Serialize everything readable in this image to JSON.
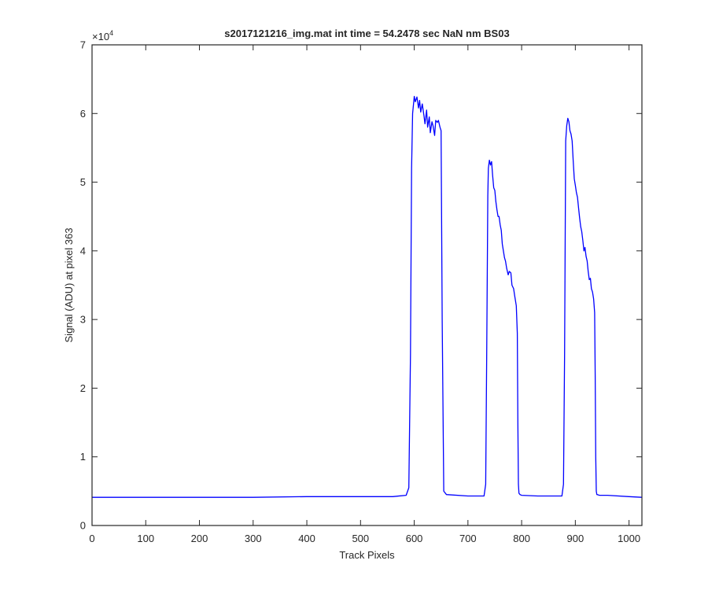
{
  "chart_data": {
    "type": "line",
    "title": "s2017121216_img.mat int time = 54.2478 sec  NaN nm BS03",
    "xlabel": "Track Pixels",
    "ylabel": "Signal (ADU) at pixel 363",
    "y_exponent_base": "×10",
    "y_exponent_power": "4",
    "xlim": [
      0,
      1024
    ],
    "ylim": [
      0,
      7
    ],
    "y_scale_factor": 10000,
    "x_ticks": [
      0,
      100,
      200,
      300,
      400,
      500,
      600,
      700,
      800,
      900,
      1000
    ],
    "y_ticks": [
      0,
      1,
      2,
      3,
      4,
      5,
      6,
      7
    ],
    "grid": false,
    "box": true,
    "series": [
      {
        "color": "#0000ff",
        "x": [
          0,
          100,
          200,
          300,
          400,
          500,
          560,
          585,
          590,
          593,
          595,
          597,
          600,
          602,
          605,
          608,
          610,
          612,
          615,
          618,
          620,
          623,
          625,
          628,
          630,
          633,
          635,
          638,
          640,
          643,
          645,
          648,
          650,
          652,
          655,
          660,
          700,
          730,
          733,
          735,
          737,
          738,
          740,
          742,
          744,
          746,
          748,
          750,
          752,
          754,
          756,
          758,
          760,
          762,
          764,
          766,
          768,
          770,
          772,
          775,
          777,
          780,
          782,
          785,
          787,
          790,
          792,
          793,
          794,
          795,
          797,
          800,
          830,
          860,
          875,
          878,
          880,
          882,
          884,
          886,
          888,
          890,
          892,
          894,
          896,
          898,
          900,
          902,
          904,
          906,
          908,
          910,
          912,
          914,
          916,
          918,
          920,
          922,
          924,
          926,
          928,
          930,
          932,
          934,
          936,
          937,
          938,
          939,
          940,
          941,
          945,
          960,
          1000,
          1024
        ],
        "y": [
          0.41,
          0.41,
          0.41,
          0.41,
          0.42,
          0.42,
          0.42,
          0.44,
          0.55,
          2.5,
          5.2,
          6.0,
          6.25,
          6.17,
          6.24,
          6.08,
          6.19,
          6.02,
          6.14,
          5.97,
          5.85,
          6.05,
          5.8,
          5.95,
          5.72,
          5.88,
          5.82,
          5.68,
          5.9,
          5.87,
          5.9,
          5.8,
          5.75,
          3.0,
          0.5,
          0.45,
          0.43,
          0.43,
          0.6,
          2.5,
          4.8,
          5.2,
          5.32,
          5.25,
          5.3,
          5.1,
          4.92,
          4.88,
          4.72,
          4.6,
          4.5,
          4.5,
          4.38,
          4.3,
          4.1,
          4.0,
          3.9,
          3.85,
          3.75,
          3.65,
          3.7,
          3.68,
          3.5,
          3.45,
          3.35,
          3.2,
          2.8,
          1.5,
          0.6,
          0.47,
          0.45,
          0.44,
          0.43,
          0.43,
          0.43,
          0.6,
          2.5,
          5.6,
          5.82,
          5.93,
          5.88,
          5.75,
          5.7,
          5.6,
          5.32,
          5.05,
          4.95,
          4.85,
          4.78,
          4.62,
          4.48,
          4.35,
          4.28,
          4.15,
          4.0,
          4.05,
          3.92,
          3.85,
          3.7,
          3.58,
          3.6,
          3.45,
          3.4,
          3.3,
          3.1,
          2.2,
          1.0,
          0.5,
          0.45,
          0.45,
          0.44,
          0.44,
          0.42,
          0.41
        ]
      }
    ]
  }
}
